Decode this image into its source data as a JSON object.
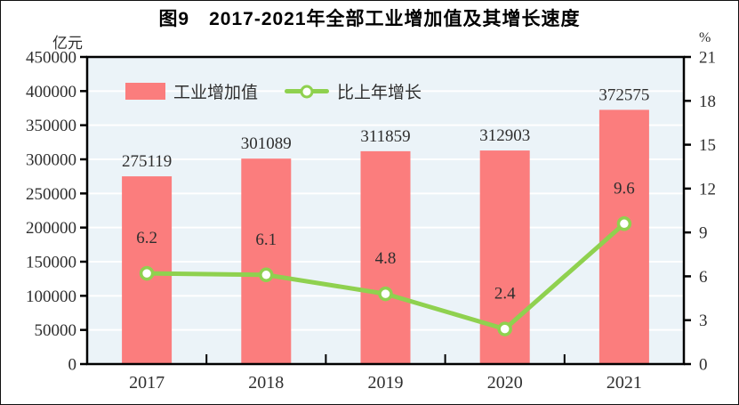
{
  "title": "图9　2017-2021年全部工业增加值及其增长速度",
  "axes": {
    "left_unit": "亿元",
    "right_unit": "%"
  },
  "legend": [
    {
      "label": "工业增加值",
      "marker": "bar-swatch"
    },
    {
      "label": "比上年增长",
      "marker": "line-with-dot"
    }
  ],
  "colors": {
    "bar": "#FB7D7D",
    "line": "#8FD14F",
    "marker_fill": "#FFFFFF",
    "plot_bg": "#EBF3F8",
    "grid": "#FFFFFF",
    "axis": "#000000",
    "text": "#2E2E2E"
  },
  "chart_data": {
    "type": "bar+line",
    "title": "图9 2017-2021年全部工业增加值及其增长速度",
    "categories": [
      "2017",
      "2018",
      "2019",
      "2020",
      "2021"
    ],
    "series": [
      {
        "name": "工业增加值",
        "type": "bar",
        "axis": "left",
        "unit": "亿元",
        "values": [
          275119,
          301089,
          311859,
          312903,
          372575
        ]
      },
      {
        "name": "比上年增长",
        "type": "line",
        "axis": "right",
        "unit": "%",
        "values": [
          6.2,
          6.1,
          4.8,
          2.4,
          9.6
        ]
      }
    ],
    "left_axis": {
      "label": "亿元",
      "min": 0,
      "max": 450000,
      "step": 50000,
      "tick_labels": [
        "0",
        "50000",
        "100000",
        "150000",
        "200000",
        "250000",
        "300000",
        "350000",
        "400000",
        "450000"
      ]
    },
    "right_axis": {
      "label": "%",
      "min": 0,
      "max": 21,
      "step": 3,
      "tick_labels": [
        "0",
        "3",
        "6",
        "9",
        "12",
        "15",
        "18",
        "21"
      ]
    },
    "grid": "horizontal-white-on-lightblue",
    "legend_position": "top-left-inside",
    "data_labels": "shown"
  }
}
